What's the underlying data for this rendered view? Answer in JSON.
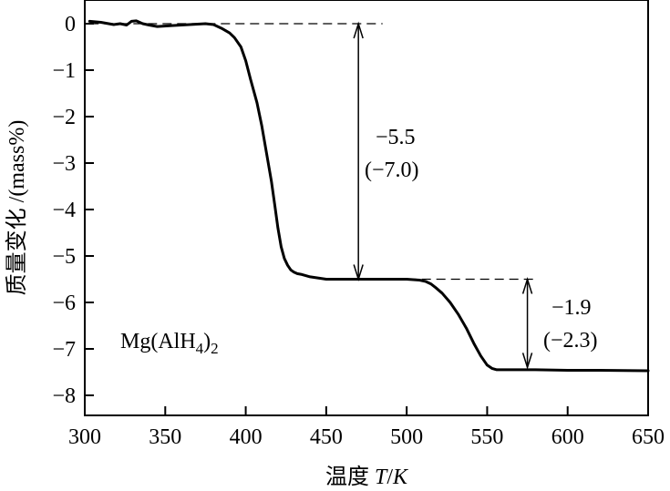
{
  "chart_data": {
    "type": "line",
    "xlabel_main": "温度",
    "xlabel_var": "T",
    "xlabel_sep": "/",
    "xlabel_unit": "K",
    "ylabel": "质量变化 /(mass%)",
    "xlim": [
      300,
      650
    ],
    "ylim": [
      -8.5,
      0.5
    ],
    "xticks": [
      300,
      350,
      400,
      450,
      500,
      550,
      600,
      650
    ],
    "yticks": [
      0,
      -1,
      -2,
      -3,
      -4,
      -5,
      -6,
      -7,
      -8
    ],
    "grid": false,
    "series": [
      {
        "name": "",
        "x": [
          303,
          310,
          318,
          322,
          326,
          329,
          332,
          336,
          340,
          345,
          355,
          365,
          375,
          380,
          385,
          390,
          393,
          397,
          400,
          403,
          407,
          410,
          413,
          416,
          418,
          420,
          422,
          424,
          426,
          428,
          430,
          432,
          435,
          440,
          450,
          460,
          480,
          500,
          508,
          512,
          515,
          518,
          522,
          527,
          532,
          537,
          542,
          546,
          550,
          553,
          556,
          560,
          580,
          600,
          620,
          650
        ],
        "y": [
          0.05,
          0.03,
          -0.02,
          0.0,
          -0.03,
          0.05,
          0.06,
          0.0,
          -0.03,
          -0.06,
          -0.04,
          -0.02,
          0.0,
          -0.02,
          -0.1,
          -0.2,
          -0.3,
          -0.5,
          -0.8,
          -1.2,
          -1.7,
          -2.2,
          -2.8,
          -3.4,
          -3.9,
          -4.4,
          -4.8,
          -5.05,
          -5.2,
          -5.3,
          -5.35,
          -5.38,
          -5.4,
          -5.45,
          -5.5,
          -5.5,
          -5.5,
          -5.5,
          -5.52,
          -5.55,
          -5.6,
          -5.68,
          -5.8,
          -6.0,
          -6.25,
          -6.55,
          -6.9,
          -7.15,
          -7.35,
          -7.42,
          -7.45,
          -7.45,
          -7.45,
          -7.46,
          -7.46,
          -7.47
        ]
      }
    ],
    "annotations": [
      {
        "text_main": "−5.5",
        "text_sub": "(−7.0)",
        "from_y": 0,
        "to_y": -5.5,
        "x": 470
      },
      {
        "text_main": "−1.9",
        "text_sub": "(−2.3)",
        "from_y": -5.5,
        "to_y": -7.4,
        "x": 575
      }
    ],
    "label": {
      "formula_a": "Mg(AlH",
      "sub_a": "4",
      "formula_b": ")",
      "sub_b": "2"
    },
    "ref_lines": [
      {
        "y": 0,
        "x_from": 303,
        "x_to": 485
      },
      {
        "y": -5.5,
        "x_from": 455,
        "x_to": 580
      }
    ],
    "colors": {
      "line": "#000000",
      "background": "#ffffff"
    }
  }
}
